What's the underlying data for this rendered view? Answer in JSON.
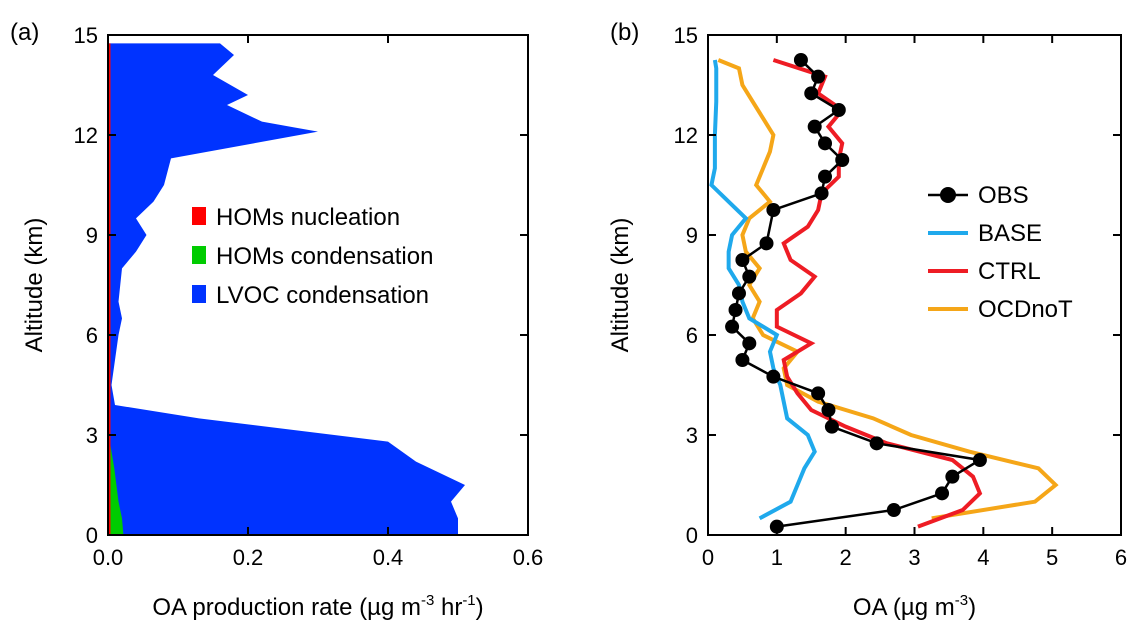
{
  "chart_data": [
    {
      "panel_tag": "(a)",
      "type": "area",
      "xlabel_parts": {
        "pre": "OA production rate (µg m",
        "sup1": "-3",
        "mid": " hr",
        "sup2": "-1",
        "post": ")"
      },
      "ylabel": "Altitude (km)",
      "xlim": [
        0,
        0.6
      ],
      "ylim": [
        0,
        15
      ],
      "x_ticks": [
        "0.0",
        "0.2",
        "0.4",
        "0.6"
      ],
      "x_tick_values": [
        0,
        0.2,
        0.4,
        0.6
      ],
      "y_ticks": [
        "0",
        "3",
        "6",
        "9",
        "12",
        "15"
      ],
      "y_tick_values": [
        0,
        3,
        6,
        9,
        12,
        15
      ],
      "legend_placement": "center",
      "series": [
        {
          "name": "HOMs nucleation",
          "color": "#ff0000",
          "altitude": [
            0,
            14.75
          ],
          "values": [
            0.001,
            0.001
          ]
        },
        {
          "name": "HOMs condensation",
          "color": "#00cc00",
          "altitude": [
            0,
            0.5,
            1.0,
            1.5,
            2.0,
            2.5,
            3.0
          ],
          "values": [
            0.022,
            0.02,
            0.015,
            0.012,
            0.009,
            0.005,
            0.001
          ]
        },
        {
          "name": "LVOC condensation",
          "color": "#0033ff",
          "altitude": [
            0,
            0.5,
            1.0,
            1.5,
            2.2,
            2.8,
            3.5,
            3.9,
            4.5,
            6.0,
            6.5,
            7.0,
            8.0,
            8.5,
            9.0,
            9.5,
            10.0,
            10.5,
            11.3,
            12.1,
            12.4,
            12.9,
            13.2,
            13.8,
            14.4,
            14.75
          ],
          "values": [
            0.5,
            0.5,
            0.49,
            0.51,
            0.44,
            0.4,
            0.13,
            0.01,
            0.005,
            0.015,
            0.02,
            0.015,
            0.02,
            0.04,
            0.055,
            0.04,
            0.065,
            0.08,
            0.09,
            0.3,
            0.22,
            0.17,
            0.2,
            0.15,
            0.18,
            0.16
          ]
        }
      ]
    },
    {
      "panel_tag": "(b)",
      "type": "line",
      "xlabel_parts": {
        "pre": "OA (µg m",
        "sup1": "-3",
        "post": ")"
      },
      "ylabel": "Altitude (km)",
      "xlim": [
        0,
        6
      ],
      "ylim": [
        0,
        15
      ],
      "x_ticks": [
        "0",
        "1",
        "2",
        "3",
        "4",
        "5",
        "6"
      ],
      "x_tick_values": [
        0,
        1,
        2,
        3,
        4,
        5,
        6
      ],
      "y_ticks": [
        "0",
        "3",
        "6",
        "9",
        "12",
        "15"
      ],
      "y_tick_values": [
        0,
        3,
        6,
        9,
        12,
        15
      ],
      "legend_placement": "right",
      "series": [
        {
          "name": "OBS",
          "color": "#000000",
          "markers": true,
          "altitude": [
            0.25,
            0.75,
            1.25,
            1.75,
            2.25,
            2.75,
            3.25,
            3.75,
            4.25,
            4.75,
            5.25,
            5.75,
            6.25,
            6.75,
            7.25,
            7.75,
            8.25,
            8.75,
            9.75,
            10.25,
            10.75,
            11.25,
            11.75,
            12.25,
            12.75,
            13.25,
            13.75,
            14.25
          ],
          "values": [
            1.0,
            2.7,
            3.4,
            3.55,
            3.95,
            2.45,
            1.8,
            1.75,
            1.6,
            0.95,
            0.5,
            0.6,
            0.35,
            0.4,
            0.45,
            0.6,
            0.5,
            0.85,
            0.95,
            1.65,
            1.7,
            1.95,
            1.7,
            1.55,
            1.9,
            1.5,
            1.6,
            1.35
          ]
        },
        {
          "name": "BASE",
          "color": "#1fa9ec",
          "markers": false,
          "altitude": [
            0.5,
            1.0,
            1.5,
            2.0,
            2.5,
            3.0,
            3.5,
            4.0,
            4.5,
            5.0,
            5.5,
            6.0,
            6.5,
            7.0,
            7.5,
            8.0,
            8.5,
            9.0,
            9.5,
            10.0,
            10.5,
            11.0,
            12.0,
            13.0,
            14.0,
            14.25
          ],
          "values": [
            0.75,
            1.2,
            1.3,
            1.4,
            1.55,
            1.45,
            1.15,
            1.1,
            1.05,
            0.95,
            0.9,
            1.0,
            0.6,
            0.5,
            0.45,
            0.3,
            0.3,
            0.35,
            0.55,
            0.3,
            0.05,
            0.1,
            0.1,
            0.12,
            0.12,
            0.1
          ]
        },
        {
          "name": "CTRL",
          "color": "#ee1c24",
          "markers": false,
          "altitude": [
            0.25,
            0.75,
            1.25,
            1.75,
            2.25,
            2.75,
            3.25,
            3.75,
            4.25,
            4.75,
            5.25,
            5.75,
            6.25,
            6.75,
            7.25,
            7.75,
            8.25,
            8.75,
            9.25,
            9.75,
            10.25,
            10.75,
            11.25,
            11.75,
            12.25,
            12.75,
            13.25,
            13.75,
            14.25
          ],
          "values": [
            3.05,
            3.7,
            3.95,
            3.85,
            3.55,
            2.6,
            2.0,
            1.5,
            1.3,
            1.15,
            1.1,
            1.5,
            1.0,
            1.0,
            1.35,
            1.55,
            1.2,
            1.1,
            1.45,
            1.6,
            1.65,
            1.9,
            1.9,
            1.95,
            1.75,
            1.95,
            1.6,
            1.7,
            0.95
          ]
        },
        {
          "name": "OCDnoT",
          "color": "#f5a618",
          "markers": false,
          "altitude": [
            0.5,
            1.0,
            1.5,
            2.0,
            2.5,
            3.0,
            3.5,
            4.0,
            4.5,
            5.0,
            5.5,
            6.0,
            6.5,
            7.0,
            7.5,
            8.0,
            8.5,
            9.0,
            9.5,
            10.0,
            10.5,
            11.0,
            11.5,
            12.0,
            12.5,
            13.0,
            13.5,
            14.0,
            14.25
          ],
          "values": [
            3.25,
            4.75,
            5.05,
            4.8,
            3.8,
            2.95,
            2.4,
            1.6,
            1.15,
            1.1,
            1.3,
            0.8,
            0.65,
            0.75,
            0.6,
            0.75,
            0.55,
            0.5,
            0.6,
            0.9,
            0.7,
            0.8,
            0.9,
            0.95,
            0.8,
            0.65,
            0.5,
            0.45,
            0.15
          ]
        }
      ]
    }
  ]
}
